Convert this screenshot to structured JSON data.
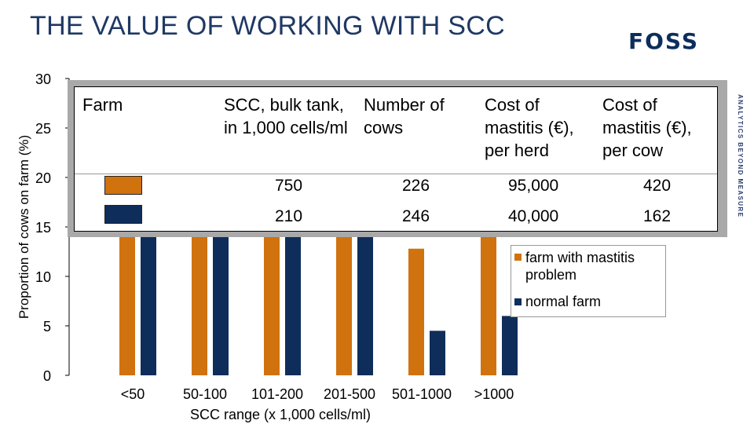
{
  "slide": {
    "title": "THE VALUE OF WORKING WITH SCC",
    "brand": "FOSS",
    "tagline": "ANALYTICS BEYOND MEASURE"
  },
  "colors": {
    "mastitis": "#d0720e",
    "normal": "#0f2d5a"
  },
  "chart_data": {
    "type": "bar",
    "title": "",
    "xlabel": "SCC range (x 1,000 cells/ml)",
    "ylabel": "Proportion of cows on farm (%)",
    "ylim": [
      0,
      30
    ],
    "yticks": [
      0,
      5,
      10,
      15,
      20,
      25,
      30
    ],
    "categories": [
      "<50",
      "50-100",
      "101-200",
      "201-500",
      "501-1000",
      ">1000"
    ],
    "series": [
      {
        "name": "farm with mastitis problem",
        "values": [
          19,
          19,
          19,
          19,
          12.8,
          17
        ]
      },
      {
        "name": "normal farm",
        "values": [
          19,
          19,
          19,
          19,
          4.5,
          6
        ]
      }
    ],
    "legend_position": "right",
    "grid": false
  },
  "table": {
    "headers": {
      "farm": "Farm",
      "scc": "SCC, bulk tank, in 1,000 cells/ml",
      "cows": "Number of cows",
      "cost_herd": "Cost of mastitis (€), per herd",
      "cost_cow": "Cost of mastitis (€), per cow"
    },
    "rows": [
      {
        "scc": "750",
        "cows": "226",
        "cost_herd": "95,000",
        "cost_cow": "420"
      },
      {
        "scc": "210",
        "cows": "246",
        "cost_herd": "40,000",
        "cost_cow": "162"
      }
    ]
  },
  "legend": {
    "mastitis_label": "farm with mastitis problem",
    "normal_label": "normal farm"
  }
}
